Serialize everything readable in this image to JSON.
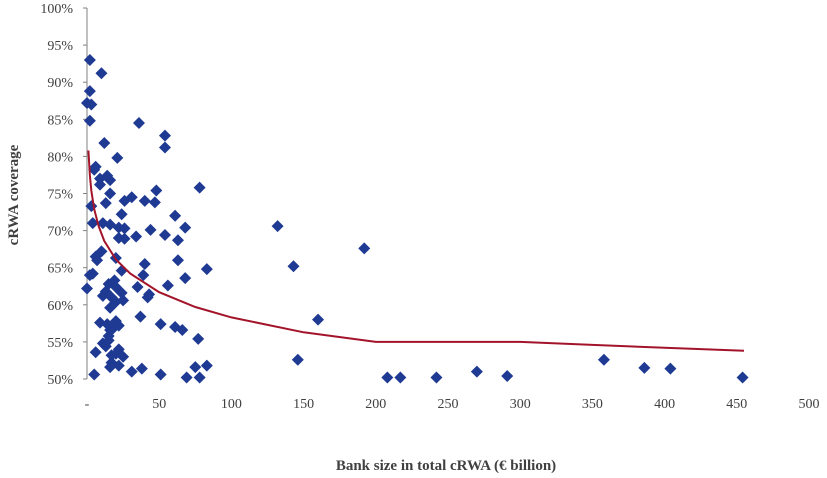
{
  "chart_data": {
    "type": "scatter",
    "title": "",
    "xlabel": "Bank size in total cRWA (€ billion)",
    "ylabel": "cRWA coverage",
    "xlim": [
      0,
      500
    ],
    "ylim": [
      50,
      100
    ],
    "x_tick_values": [
      0,
      50,
      100,
      150,
      200,
      250,
      300,
      350,
      400,
      450,
      500
    ],
    "x_tick_labels": [
      "-",
      "50",
      "100",
      "150",
      "200",
      "250",
      "300",
      "350",
      "400",
      "450",
      "500"
    ],
    "y_tick_values": [
      50,
      55,
      60,
      65,
      70,
      75,
      80,
      85,
      90,
      95,
      100
    ],
    "y_tick_labels": [
      "50%",
      "55%",
      "60%",
      "65%",
      "70%",
      "75%",
      "80%",
      "85%",
      "90%",
      "95%",
      "100%"
    ],
    "grid": false,
    "marker_color": "#1f3a93",
    "line_color": "#a3142a",
    "points": [
      {
        "x": 2,
        "y": 93.0
      },
      {
        "x": 10,
        "y": 91.2
      },
      {
        "x": 2,
        "y": 88.8
      },
      {
        "x": 0,
        "y": 87.2
      },
      {
        "x": 3,
        "y": 87.0
      },
      {
        "x": 2,
        "y": 84.8
      },
      {
        "x": 36,
        "y": 84.5
      },
      {
        "x": 54,
        "y": 82.8
      },
      {
        "x": 12,
        "y": 81.8
      },
      {
        "x": 54,
        "y": 81.2
      },
      {
        "x": 21,
        "y": 79.8
      },
      {
        "x": 6,
        "y": 78.6
      },
      {
        "x": 5,
        "y": 78.2
      },
      {
        "x": 14,
        "y": 77.4
      },
      {
        "x": 9,
        "y": 77.0
      },
      {
        "x": 16,
        "y": 76.8
      },
      {
        "x": 9,
        "y": 76.2
      },
      {
        "x": 78,
        "y": 75.8
      },
      {
        "x": 48,
        "y": 75.4
      },
      {
        "x": 16,
        "y": 75.0
      },
      {
        "x": 31,
        "y": 74.5
      },
      {
        "x": 40,
        "y": 74.0
      },
      {
        "x": 26,
        "y": 74.0
      },
      {
        "x": 47,
        "y": 73.8
      },
      {
        "x": 13,
        "y": 73.7
      },
      {
        "x": 3,
        "y": 73.3
      },
      {
        "x": 24,
        "y": 72.2
      },
      {
        "x": 61,
        "y": 72.0
      },
      {
        "x": 4,
        "y": 71.0
      },
      {
        "x": 11,
        "y": 71.0
      },
      {
        "x": 16,
        "y": 70.8
      },
      {
        "x": 132,
        "y": 70.6
      },
      {
        "x": 68,
        "y": 70.4
      },
      {
        "x": 22,
        "y": 70.4
      },
      {
        "x": 26,
        "y": 70.3
      },
      {
        "x": 44,
        "y": 70.1
      },
      {
        "x": 54,
        "y": 69.4
      },
      {
        "x": 34,
        "y": 69.2
      },
      {
        "x": 22,
        "y": 69.0
      },
      {
        "x": 26,
        "y": 68.9
      },
      {
        "x": 63,
        "y": 68.7
      },
      {
        "x": 192,
        "y": 67.6
      },
      {
        "x": 10,
        "y": 67.2
      },
      {
        "x": 6,
        "y": 66.5
      },
      {
        "x": 20,
        "y": 66.3
      },
      {
        "x": 7,
        "y": 66.0
      },
      {
        "x": 63,
        "y": 66.0
      },
      {
        "x": 40,
        "y": 65.5
      },
      {
        "x": 143,
        "y": 65.2
      },
      {
        "x": 83,
        "y": 64.8
      },
      {
        "x": 24,
        "y": 64.6
      },
      {
        "x": 4,
        "y": 64.2
      },
      {
        "x": 39,
        "y": 64.0
      },
      {
        "x": 2,
        "y": 64.0
      },
      {
        "x": 68,
        "y": 63.6
      },
      {
        "x": 19,
        "y": 63.3
      },
      {
        "x": 15,
        "y": 62.8
      },
      {
        "x": 56,
        "y": 62.6
      },
      {
        "x": 20,
        "y": 62.4
      },
      {
        "x": 35,
        "y": 62.4
      },
      {
        "x": 0,
        "y": 62.2
      },
      {
        "x": 13,
        "y": 61.8
      },
      {
        "x": 24,
        "y": 61.6
      },
      {
        "x": 43,
        "y": 61.4
      },
      {
        "x": 11,
        "y": 61.2
      },
      {
        "x": 17,
        "y": 61.0
      },
      {
        "x": 42,
        "y": 61.0
      },
      {
        "x": 25,
        "y": 60.6
      },
      {
        "x": 20,
        "y": 60.4
      },
      {
        "x": 16,
        "y": 59.6
      },
      {
        "x": 37,
        "y": 58.4
      },
      {
        "x": 160,
        "y": 58.0
      },
      {
        "x": 9,
        "y": 57.6
      },
      {
        "x": 20,
        "y": 57.8
      },
      {
        "x": 51,
        "y": 57.4
      },
      {
        "x": 14,
        "y": 57.4
      },
      {
        "x": 22,
        "y": 57.2
      },
      {
        "x": 61,
        "y": 57.0
      },
      {
        "x": 18,
        "y": 56.8
      },
      {
        "x": 16,
        "y": 56.6
      },
      {
        "x": 66,
        "y": 56.6
      },
      {
        "x": 15,
        "y": 55.8
      },
      {
        "x": 77,
        "y": 55.4
      },
      {
        "x": 15,
        "y": 55.2
      },
      {
        "x": 11,
        "y": 54.8
      },
      {
        "x": 13,
        "y": 54.4
      },
      {
        "x": 22,
        "y": 54.0
      },
      {
        "x": 6,
        "y": 53.6
      },
      {
        "x": 20,
        "y": 53.4
      },
      {
        "x": 17,
        "y": 53.2
      },
      {
        "x": 25,
        "y": 53.0
      },
      {
        "x": 146,
        "y": 52.6
      },
      {
        "x": 358,
        "y": 52.6
      },
      {
        "x": 17,
        "y": 52.2
      },
      {
        "x": 22,
        "y": 51.8
      },
      {
        "x": 83,
        "y": 51.8
      },
      {
        "x": 16,
        "y": 51.6
      },
      {
        "x": 75,
        "y": 51.6
      },
      {
        "x": 38,
        "y": 51.4
      },
      {
        "x": 386,
        "y": 51.5
      },
      {
        "x": 404,
        "y": 51.4
      },
      {
        "x": 31,
        "y": 51.0
      },
      {
        "x": 270,
        "y": 51.0
      },
      {
        "x": 5,
        "y": 50.6
      },
      {
        "x": 51,
        "y": 50.6
      },
      {
        "x": 78,
        "y": 50.2
      },
      {
        "x": 69,
        "y": 50.2
      },
      {
        "x": 208,
        "y": 50.2
      },
      {
        "x": 217,
        "y": 50.2
      },
      {
        "x": 242,
        "y": 50.2
      },
      {
        "x": 291,
        "y": 50.4
      },
      {
        "x": 454,
        "y": 50.2
      }
    ],
    "trendline": {
      "type": "logarithmic",
      "description": "fitted curve",
      "x": [
        1,
        2,
        3,
        5,
        8,
        12,
        20,
        30,
        50,
        75,
        100,
        150,
        200,
        250,
        300,
        350,
        400,
        455
      ],
      "y": [
        80.8,
        77.4,
        75.4,
        72.9,
        70.6,
        68.6,
        66.1,
        64.2,
        61.7,
        59.7,
        58.3,
        56.3,
        55.0,
        55.0,
        55.0,
        54.6,
        54.2,
        53.8
      ]
    }
  }
}
